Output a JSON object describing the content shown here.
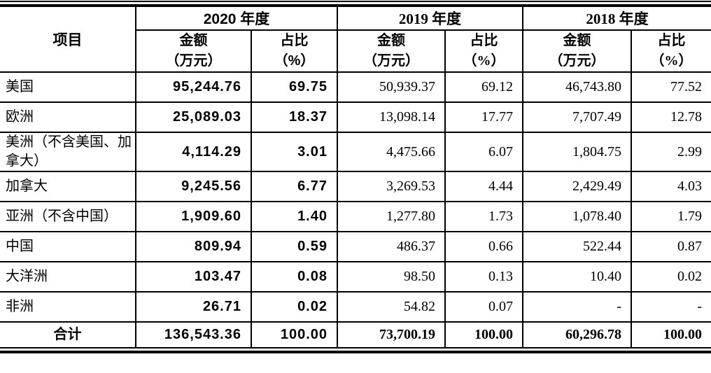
{
  "table": {
    "corner_label": "项目",
    "year_groups": [
      {
        "label": "2020 年度",
        "amount_header": "金额\n（万元）",
        "ratio_header": "占比\n（%）"
      },
      {
        "label": "2019 年度",
        "amount_header": "金额\n（万元）",
        "ratio_header": "占比\n（%）"
      },
      {
        "label": "2018 年度",
        "amount_header": "金额\n（万元）",
        "ratio_header": "占比\n（%）"
      }
    ],
    "rows": [
      {
        "label": "美国",
        "values": [
          "95,244.76",
          "69.75",
          "50,939.37",
          "69.12",
          "46,743.80",
          "77.52"
        ]
      },
      {
        "label": "欧洲",
        "values": [
          "25,089.03",
          "18.37",
          "13,098.14",
          "17.77",
          "7,707.49",
          "12.78"
        ]
      },
      {
        "label": "美洲（不含美国、加拿大）",
        "values": [
          "4,114.29",
          "3.01",
          "4,475.66",
          "6.07",
          "1,804.75",
          "2.99"
        ]
      },
      {
        "label": "加拿大",
        "values": [
          "9,245.56",
          "6.77",
          "3,269.53",
          "4.44",
          "2,429.49",
          "4.03"
        ]
      },
      {
        "label": "亚洲（不含中国）",
        "values": [
          "1,909.60",
          "1.40",
          "1,277.80",
          "1.73",
          "1,078.40",
          "1.79"
        ]
      },
      {
        "label": "中国",
        "values": [
          "809.94",
          "0.59",
          "486.37",
          "0.66",
          "522.44",
          "0.87"
        ]
      },
      {
        "label": "大洋洲",
        "values": [
          "103.47",
          "0.08",
          "98.50",
          "0.13",
          "10.40",
          "0.02"
        ]
      },
      {
        "label": "非洲",
        "values": [
          "26.71",
          "0.02",
          "54.82",
          "0.07",
          "-",
          "-"
        ]
      },
      {
        "label": "合计",
        "is_total": true,
        "values": [
          "136,543.36",
          "100.00",
          "73,700.19",
          "100.00",
          "60,296.78",
          "100.00"
        ]
      }
    ],
    "colors": {
      "border": "#000000",
      "text": "#000000",
      "background": "#ffffff"
    }
  }
}
